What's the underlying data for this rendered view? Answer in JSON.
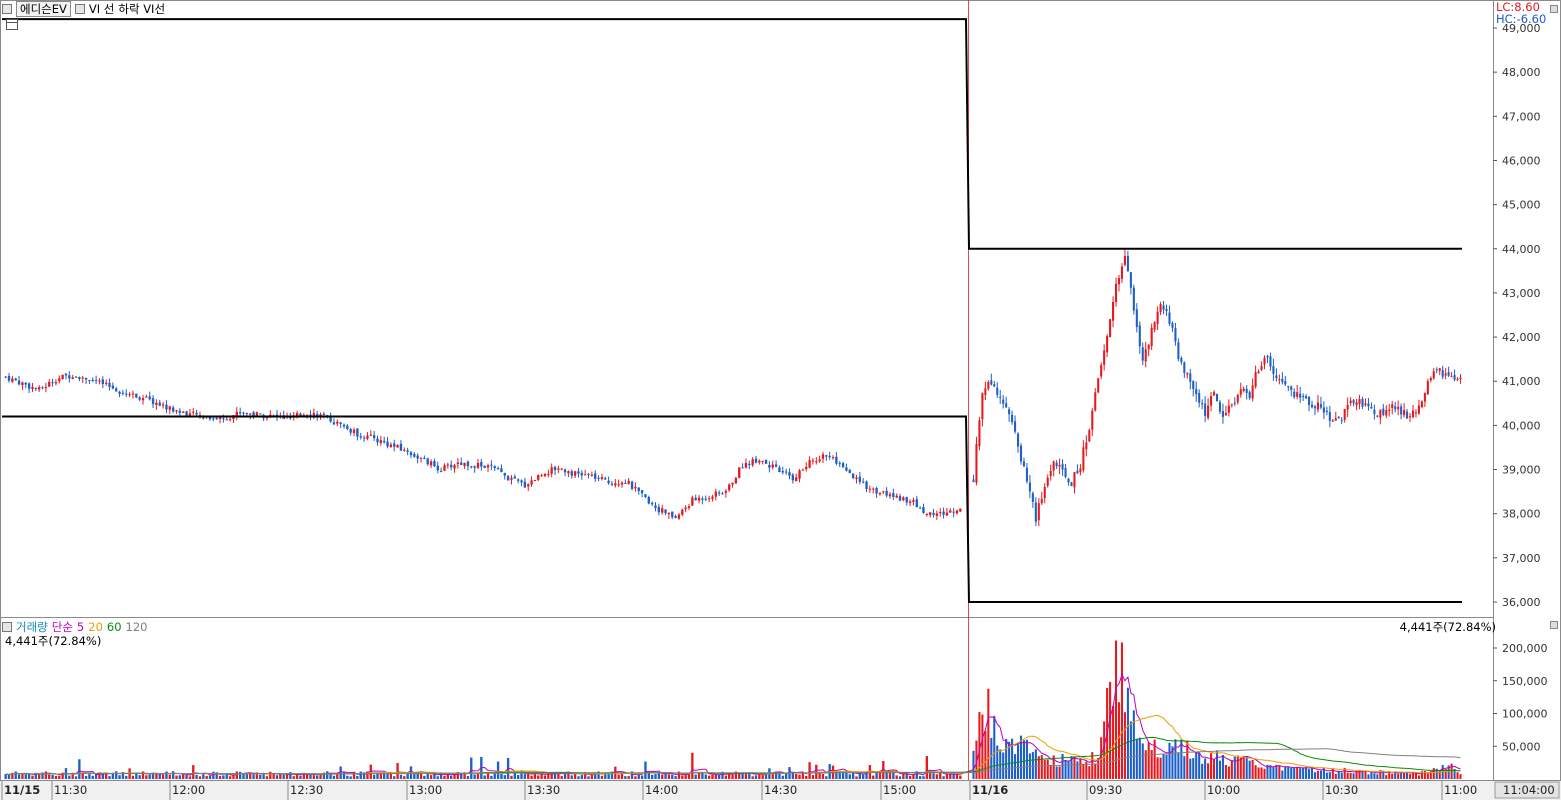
{
  "legend": {
    "stock_name": "에디슨EV",
    "vi_line": "VI 선",
    "down_vi_line": "하락 VI선"
  },
  "limits": {
    "lc": "LC:8.60",
    "hc": "HC:-6.60",
    "lc_color": "#e8191e",
    "hc_color": "#1a5cc8"
  },
  "colors": {
    "up": "#e8191e",
    "down": "#1c5fc9",
    "vi_line": "#000000",
    "ma5": "#c000c0",
    "ma20": "#e8a000",
    "ma60": "#0a8a0a",
    "ma120": "#808080"
  },
  "price_axis": {
    "labels": [
      "49,000",
      "48,000",
      "47,000",
      "46,000",
      "45,000",
      "44,000",
      "43,000",
      "42,000",
      "41,000",
      "40,000",
      "39,000",
      "38,000",
      "37,000",
      "36,000"
    ]
  },
  "volume_panel": {
    "title": "거래량",
    "ma_label": "단순",
    "ma5": "5",
    "ma20": "20",
    "ma60": "60",
    "ma120": "120",
    "current": "4,441주(72.84%)",
    "axis_labels": [
      "200,000",
      "150,000",
      "100,000",
      "50,000"
    ]
  },
  "time_axis": {
    "labels": [
      {
        "text": "11/15",
        "bold": true
      },
      {
        "text": "11:30",
        "bold": false
      },
      {
        "text": "12:00",
        "bold": false
      },
      {
        "text": "12:30",
        "bold": false
      },
      {
        "text": "13:00",
        "bold": false
      },
      {
        "text": "13:30",
        "bold": false
      },
      {
        "text": "14:00",
        "bold": false
      },
      {
        "text": "14:30",
        "bold": false
      },
      {
        "text": "15:00",
        "bold": false
      },
      {
        "text": "11/16",
        "bold": true
      },
      {
        "text": "09:30",
        "bold": false
      },
      {
        "text": "10:00",
        "bold": false
      },
      {
        "text": "10:30",
        "bold": false
      },
      {
        "text": "11:00",
        "bold": false
      }
    ],
    "current_time": "11:04:00"
  },
  "chart_data": {
    "type": "candlestick",
    "price_range": [
      35700,
      49200
    ],
    "volume_range": [
      0,
      230000
    ],
    "vi_line": {
      "day1": {
        "upper": 49200,
        "lower": 40200
      },
      "day2": {
        "upper": 44000,
        "lower": 36000
      }
    },
    "day1_close_path": [
      [
        0,
        41100
      ],
      [
        5,
        40950
      ],
      [
        10,
        40800
      ],
      [
        15,
        41050
      ],
      [
        20,
        41150
      ],
      [
        25,
        41050
      ],
      [
        30,
        40900
      ],
      [
        35,
        40750
      ],
      [
        40,
        40650
      ],
      [
        45,
        40500
      ],
      [
        50,
        40350
      ],
      [
        55,
        40250
      ],
      [
        60,
        40200
      ],
      [
        65,
        40150
      ],
      [
        70,
        40300
      ],
      [
        75,
        40250
      ],
      [
        80,
        40200
      ],
      [
        85,
        40150
      ],
      [
        90,
        40300
      ],
      [
        95,
        40200
      ],
      [
        100,
        40000
      ],
      [
        105,
        39800
      ],
      [
        110,
        39700
      ],
      [
        115,
        39550
      ],
      [
        120,
        39400
      ],
      [
        125,
        39200
      ],
      [
        130,
        39000
      ],
      [
        135,
        39150
      ],
      [
        140,
        39100
      ],
      [
        145,
        39050
      ],
      [
        150,
        38800
      ],
      [
        155,
        38650
      ],
      [
        160,
        38900
      ],
      [
        165,
        39050
      ],
      [
        170,
        38900
      ],
      [
        175,
        38850
      ],
      [
        180,
        38700
      ],
      [
        185,
        38750
      ],
      [
        190,
        38400
      ],
      [
        195,
        38100
      ],
      [
        200,
        37900
      ],
      [
        205,
        38300
      ],
      [
        210,
        38400
      ],
      [
        215,
        38500
      ],
      [
        220,
        39100
      ],
      [
        225,
        39250
      ],
      [
        230,
        39000
      ],
      [
        235,
        38800
      ],
      [
        240,
        39150
      ],
      [
        245,
        39350
      ],
      [
        250,
        39000
      ],
      [
        255,
        38700
      ],
      [
        260,
        38500
      ],
      [
        265,
        38400
      ],
      [
        270,
        38300
      ],
      [
        275,
        38000
      ],
      [
        280,
        38000
      ],
      [
        285,
        38100
      ]
    ],
    "day2_close_path": [
      [
        0,
        38800
      ],
      [
        3,
        40800
      ],
      [
        6,
        41000
      ],
      [
        9,
        40700
      ],
      [
        12,
        40300
      ],
      [
        15,
        39500
      ],
      [
        18,
        38800
      ],
      [
        21,
        37900
      ],
      [
        24,
        38600
      ],
      [
        27,
        39200
      ],
      [
        30,
        38900
      ],
      [
        33,
        38700
      ],
      [
        36,
        39100
      ],
      [
        39,
        40000
      ],
      [
        42,
        41000
      ],
      [
        45,
        42000
      ],
      [
        48,
        43200
      ],
      [
        51,
        43800
      ],
      [
        54,
        42700
      ],
      [
        57,
        41400
      ],
      [
        60,
        42100
      ],
      [
        63,
        42700
      ],
      [
        66,
        42400
      ],
      [
        69,
        41600
      ],
      [
        72,
        41100
      ],
      [
        75,
        40700
      ],
      [
        78,
        40300
      ],
      [
        81,
        40700
      ],
      [
        84,
        40200
      ],
      [
        87,
        40500
      ],
      [
        90,
        40800
      ],
      [
        93,
        40700
      ],
      [
        96,
        41300
      ],
      [
        99,
        41500
      ],
      [
        102,
        41000
      ],
      [
        105,
        40900
      ],
      [
        108,
        40700
      ],
      [
        111,
        40600
      ],
      [
        114,
        40500
      ],
      [
        117,
        40400
      ],
      [
        120,
        40200
      ],
      [
        123,
        40100
      ],
      [
        126,
        40400
      ],
      [
        129,
        40600
      ],
      [
        132,
        40400
      ],
      [
        135,
        40300
      ],
      [
        138,
        40300
      ],
      [
        141,
        40400
      ],
      [
        144,
        40300
      ],
      [
        147,
        40200
      ],
      [
        150,
        40400
      ],
      [
        153,
        40900
      ],
      [
        156,
        41300
      ],
      [
        159,
        41100
      ],
      [
        162,
        41000
      ]
    ],
    "volume_day2_peaks": [
      {
        "bar": 0,
        "v": 50000
      },
      {
        "bar": 2,
        "v": 140000
      },
      {
        "bar": 4,
        "v": 155000
      },
      {
        "bar": 6,
        "v": 110000
      },
      {
        "bar": 8,
        "v": 75000
      },
      {
        "bar": 12,
        "v": 65000
      },
      {
        "bar": 16,
        "v": 70000
      },
      {
        "bar": 22,
        "v": 45000
      },
      {
        "bar": 30,
        "v": 40000
      },
      {
        "bar": 36,
        "v": 30000
      },
      {
        "bar": 42,
        "v": 45000
      },
      {
        "bar": 44,
        "v": 100000
      },
      {
        "bar": 46,
        "v": 165000
      },
      {
        "bar": 48,
        "v": 215000
      },
      {
        "bar": 50,
        "v": 225000
      },
      {
        "bar": 52,
        "v": 135000
      },
      {
        "bar": 54,
        "v": 100000
      },
      {
        "bar": 56,
        "v": 90000
      },
      {
        "bar": 58,
        "v": 70000
      },
      {
        "bar": 62,
        "v": 55000
      },
      {
        "bar": 70,
        "v": 60000
      },
      {
        "bar": 80,
        "v": 45000
      },
      {
        "bar": 90,
        "v": 35000
      },
      {
        "bar": 100,
        "v": 30000
      },
      {
        "bar": 110,
        "v": 20000
      },
      {
        "bar": 130,
        "v": 15000
      },
      {
        "bar": 150,
        "v": 10000
      },
      {
        "bar": 160,
        "v": 30000
      },
      {
        "bar": 164,
        "v": 15000
      }
    ]
  }
}
